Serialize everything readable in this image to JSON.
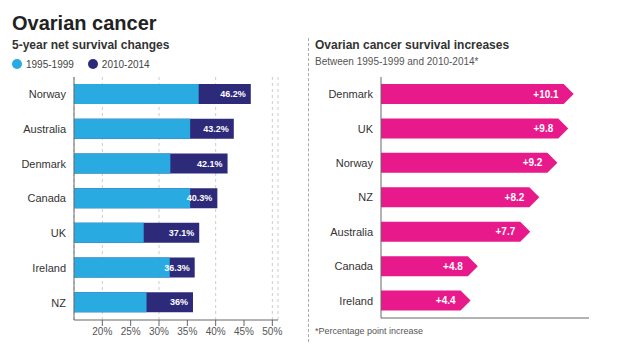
{
  "chart_data": [
    {
      "type": "bar",
      "orientation": "horizontal",
      "title": "Ovarian cancer",
      "subtitle": "5-year net survival changes",
      "categories": [
        "Norway",
        "Australia",
        "Denmark",
        "Canada",
        "UK",
        "Ireland",
        "NZ"
      ],
      "series": [
        {
          "name": "1995-1999",
          "color": "#29abe2",
          "values": [
            37.0,
            35.5,
            32.0,
            35.5,
            27.3,
            31.9,
            27.8
          ]
        },
        {
          "name": "2010-2014",
          "color": "#2e2a7a",
          "values": [
            46.2,
            43.2,
            42.1,
            40.3,
            37.1,
            36.3,
            36.0
          ],
          "data_labels": true,
          "value_labels": [
            "46.2%",
            "43.2%",
            "42.1%",
            "40.3%",
            "37.1%",
            "36.3%",
            "36%"
          ]
        }
      ],
      "xlim": [
        15,
        51
      ],
      "xticks": [
        {
          "value": 20,
          "label": "20%"
        },
        {
          "value": 25,
          "label": "25%"
        },
        {
          "value": 30,
          "label": "30%"
        },
        {
          "value": 35,
          "label": "35%"
        },
        {
          "value": 40,
          "label": "40%"
        },
        {
          "value": 45,
          "label": "45%"
        },
        {
          "value": 50,
          "label": "50%"
        }
      ],
      "grid": true,
      "legend": "top left"
    },
    {
      "type": "bar",
      "orientation": "horizontal",
      "title": "Ovarian cancer survival increases",
      "subtitle": "Between 1995-1999 and 2010-2014*",
      "annotations": [
        "*Percentage point increase"
      ],
      "categories": [
        "Denmark",
        "UK",
        "Norway",
        "NZ",
        "Australia",
        "Canada",
        "Ireland"
      ],
      "values": [
        10.1,
        9.8,
        9.2,
        8.2,
        7.7,
        4.8,
        4.4
      ],
      "value_labels": [
        "+10.1",
        "+9.8",
        "+9.2",
        "+8.2",
        "+7.7",
        "+4.8",
        "+4.4"
      ],
      "color": "#e8198b",
      "data_labels": true,
      "xlim": [
        0,
        11.5
      ],
      "tick_labels": "y"
    }
  ]
}
